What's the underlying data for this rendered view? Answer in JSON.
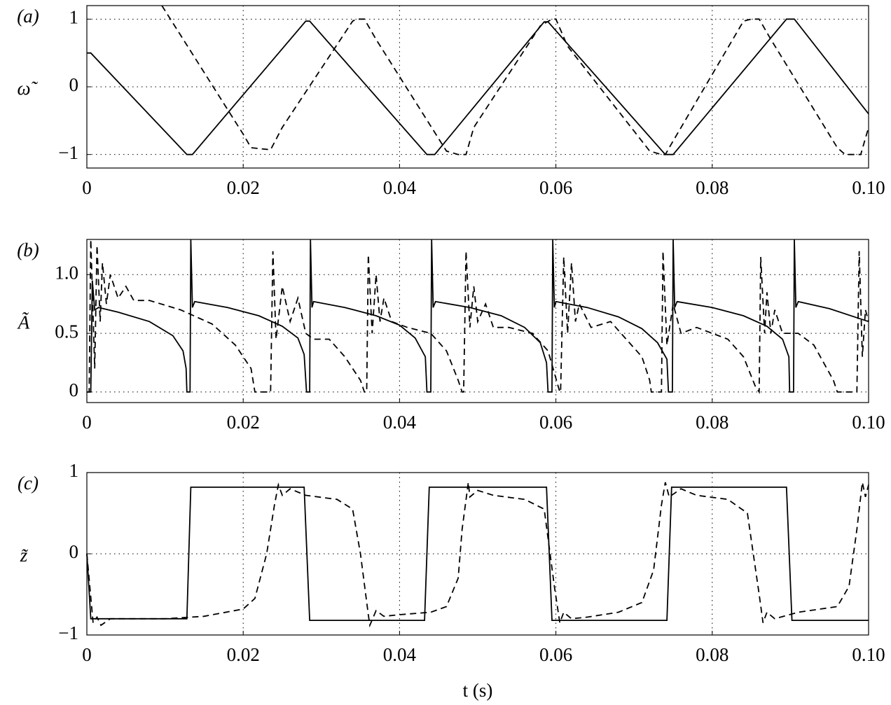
{
  "chart_data": [
    {
      "type": "line",
      "panel_label": "(a)",
      "ylabel": "ω̃",
      "xlim": [
        0,
        0.1
      ],
      "ylim": [
        -1.2,
        1.2
      ],
      "xticks": [
        0,
        {
          "value": 0.02,
          "label": "0.02"
        },
        {
          "value": 0.04,
          "label": "0.04"
        },
        {
          "value": 0.06,
          "label": "0.06"
        },
        {
          "value": 0.08,
          "label": "0.08"
        },
        {
          "value": 0.1,
          "label": "0.10"
        }
      ],
      "yticks": [
        {
          "value": -1,
          "label": "−1"
        },
        0,
        1
      ],
      "grid": true,
      "series": [
        {
          "color": "#000000",
          "dash": "solid",
          "x": [
            0,
            0.0005,
            0.0128,
            0.0135,
            0.028,
            0.0285,
            0.0435,
            0.0445,
            0.0585,
            0.059,
            0.074,
            0.075,
            0.0895,
            0.0905,
            0.1
          ],
          "values": [
            0.5,
            0.5,
            -1,
            -1,
            0.97,
            0.97,
            -1,
            -1,
            0.96,
            0.96,
            -1,
            -1,
            1,
            1,
            -0.4
          ]
        },
        {
          "color": "#000000",
          "dash": "dashed",
          "x": [
            0.0096,
            0.02,
            0.021,
            0.0235,
            0.025,
            0.034,
            0.0345,
            0.0355,
            0.037,
            0.046,
            0.0475,
            0.0485,
            0.0495,
            0.058,
            0.0595,
            0.06,
            0.0615,
            0.072,
            0.0735,
            0.074,
            0.075,
            0.084,
            0.085,
            0.086,
            0.0875,
            0.096,
            0.097,
            0.099,
            0.1
          ],
          "values": [
            1.2,
            -0.7,
            -0.9,
            -0.93,
            -0.6,
            0.97,
            1,
            1,
            0.7,
            -0.95,
            -1,
            -1,
            -0.6,
            0.9,
            1,
            1,
            0.6,
            -0.95,
            -1,
            -1,
            -0.8,
            0.97,
            1,
            1,
            0.7,
            -0.9,
            -1,
            -1,
            -0.6
          ]
        }
      ]
    },
    {
      "type": "line",
      "panel_label": "(b)",
      "ylabel": "Ã",
      "xlim": [
        0,
        0.1
      ],
      "ylim": [
        -0.09,
        1.3
      ],
      "xticks": [
        0,
        {
          "value": 0.02,
          "label": "0.02"
        },
        {
          "value": 0.04,
          "label": "0.04"
        },
        {
          "value": 0.06,
          "label": "0.06"
        },
        {
          "value": 0.08,
          "label": "0.08"
        },
        {
          "value": 0.1,
          "label": "0.10"
        }
      ],
      "yticks": [
        0,
        0.5,
        {
          "value": 1,
          "label": "1.0"
        }
      ],
      "grid": true,
      "series": [
        {
          "color": "#000000",
          "dash": "solid",
          "x": [
            0,
            0.0005,
            0.0007,
            0.001,
            0.0015,
            0.004,
            0.008,
            0.011,
            0.0123,
            0.0127,
            0.0128,
            0.0132,
            0.0133,
            0.0135,
            0.0138,
            0.018,
            0.022,
            0.025,
            0.027,
            0.0278,
            0.0281,
            0.0285,
            0.0286,
            0.0288,
            0.029,
            0.033,
            0.037,
            0.04,
            0.042,
            0.0433,
            0.0435,
            0.044,
            0.0441,
            0.0443,
            0.0446,
            0.049,
            0.053,
            0.056,
            0.058,
            0.0588,
            0.059,
            0.0595,
            0.0596,
            0.0598,
            0.06,
            0.064,
            0.068,
            0.071,
            0.073,
            0.0742,
            0.0744,
            0.0749,
            0.075,
            0.0752,
            0.0755,
            0.08,
            0.084,
            0.087,
            0.089,
            0.0898,
            0.0899,
            0.0904,
            0.0905,
            0.0907,
            0.091,
            0.095,
            0.1
          ],
          "values": [
            0,
            0,
            0.95,
            0.7,
            0.72,
            0.68,
            0.6,
            0.48,
            0.35,
            0.2,
            0,
            0,
            1.3,
            0.72,
            0.77,
            0.72,
            0.65,
            0.56,
            0.46,
            0.32,
            0,
            0,
            1.3,
            0.72,
            0.77,
            0.72,
            0.65,
            0.57,
            0.46,
            0.3,
            0,
            0,
            1.3,
            0.72,
            0.77,
            0.72,
            0.65,
            0.55,
            0.42,
            0.25,
            0,
            0,
            1.3,
            0.72,
            0.77,
            0.72,
            0.64,
            0.54,
            0.42,
            0.28,
            0,
            0,
            1.3,
            0.72,
            0.77,
            0.72,
            0.65,
            0.56,
            0.45,
            0.3,
            0,
            0,
            1.3,
            0.72,
            0.77,
            0.71,
            0.6
          ]
        },
        {
          "color": "#000000",
          "dash": "dashed",
          "x": [
            0,
            0.0003,
            0.0005,
            0.001,
            0.0013,
            0.0017,
            0.002,
            0.0025,
            0.003,
            0.004,
            0.005,
            0.006,
            0.008,
            0.012,
            0.016,
            0.019,
            0.021,
            0.0215,
            0.0235,
            0.0238,
            0.0242,
            0.025,
            0.026,
            0.027,
            0.028,
            0.029,
            0.031,
            0.033,
            0.035,
            0.0355,
            0.0358,
            0.036,
            0.0365,
            0.037,
            0.0375,
            0.038,
            0.039,
            0.041,
            0.044,
            0.046,
            0.0475,
            0.048,
            0.0482,
            0.0485,
            0.049,
            0.0495,
            0.05,
            0.051,
            0.052,
            0.054,
            0.057,
            0.059,
            0.0605,
            0.0606,
            0.061,
            0.0615,
            0.062,
            0.0625,
            0.063,
            0.0645,
            0.067,
            0.069,
            0.071,
            0.072,
            0.0722,
            0.0735,
            0.0737,
            0.0742,
            0.075,
            0.076,
            0.078,
            0.08,
            0.082,
            0.084,
            0.0855,
            0.086,
            0.0862,
            0.0867,
            0.087,
            0.0875,
            0.088,
            0.089,
            0.091,
            0.093,
            0.0955,
            0.096,
            0.0985,
            0.0988,
            0.0992,
            0.0996,
            0.1
          ],
          "values": [
            0,
            0,
            1.3,
            0.2,
            1.25,
            0.6,
            1.1,
            0.75,
            1.0,
            0.8,
            0.9,
            0.78,
            0.78,
            0.7,
            0.58,
            0.4,
            0.2,
            0,
            0,
            1.2,
            0.45,
            0.9,
            0.6,
            0.8,
            0.5,
            0.45,
            0.45,
            0.3,
            0.1,
            0,
            0,
            1.17,
            0.5,
            1.0,
            0.6,
            0.8,
            0.6,
            0.55,
            0.5,
            0.35,
            0.1,
            0,
            0,
            1.2,
            0.55,
            0.9,
            0.6,
            0.75,
            0.55,
            0.55,
            0.5,
            0.35,
            0,
            0,
            1.15,
            0.5,
            1.1,
            0.6,
            0.75,
            0.55,
            0.6,
            0.45,
            0.3,
            0.1,
            0,
            0,
            1.2,
            0.4,
            0.75,
            0.5,
            0.55,
            0.5,
            0.45,
            0.3,
            0.05,
            0,
            1.15,
            0.5,
            0.85,
            0.5,
            0.7,
            0.5,
            0.5,
            0.4,
            0.1,
            0,
            0,
            1.2,
            0.3,
            0.7,
            0.6
          ]
        }
      ]
    },
    {
      "type": "line",
      "panel_label": "(c)",
      "ylabel": "z̃",
      "xlabel": "t (s)",
      "xlim": [
        0,
        0.1
      ],
      "ylim": [
        -1,
        1
      ],
      "xticks": [
        0,
        {
          "value": 0.02,
          "label": "0.02"
        },
        {
          "value": 0.04,
          "label": "0.04"
        },
        {
          "value": 0.06,
          "label": "0.06"
        },
        {
          "value": 0.08,
          "label": "0.08"
        },
        {
          "value": 0.1,
          "label": "0.10"
        }
      ],
      "yticks": [
        {
          "value": -1,
          "label": "−1"
        },
        0,
        1
      ],
      "grid": true,
      "series": [
        {
          "color": "#000000",
          "dash": "solid",
          "x": [
            0,
            0.0005,
            0.0128,
            0.0133,
            0.0278,
            0.0285,
            0.0432,
            0.0438,
            0.0588,
            0.0595,
            0.0742,
            0.0748,
            0.0895,
            0.0902,
            0.1
          ],
          "values": [
            0,
            -0.8,
            -0.8,
            0.82,
            0.82,
            -0.82,
            -0.82,
            0.82,
            0.82,
            -0.82,
            -0.82,
            0.82,
            0.82,
            -0.82,
            -0.82
          ]
        },
        {
          "color": "#000000",
          "dash": "dashed",
          "x": [
            0,
            0.0008,
            0.0013,
            0.0018,
            0.003,
            0.01,
            0.015,
            0.02,
            0.0215,
            0.023,
            0.024,
            0.0245,
            0.025,
            0.026,
            0.028,
            0.032,
            0.034,
            0.035,
            0.036,
            0.0362,
            0.037,
            0.038,
            0.04,
            0.044,
            0.046,
            0.0475,
            0.048,
            0.0488,
            0.049,
            0.05,
            0.052,
            0.056,
            0.0585,
            0.0598,
            0.0605,
            0.061,
            0.062,
            0.064,
            0.068,
            0.071,
            0.0725,
            0.0735,
            0.074,
            0.0745,
            0.076,
            0.078,
            0.082,
            0.0845,
            0.086,
            0.0865,
            0.087,
            0.088,
            0.091,
            0.096,
            0.0975,
            0.0985,
            0.0992,
            0.0996,
            0.1
          ],
          "values": [
            0,
            -0.85,
            -0.78,
            -0.88,
            -0.8,
            -0.8,
            -0.77,
            -0.68,
            -0.55,
            0,
            0.6,
            0.85,
            0.72,
            0.8,
            0.72,
            0.67,
            0.55,
            0,
            -0.75,
            -0.88,
            -0.7,
            -0.77,
            -0.75,
            -0.72,
            -0.65,
            -0.3,
            0.3,
            0.88,
            0.7,
            0.78,
            0.72,
            0.67,
            0.55,
            -0.4,
            -0.85,
            -0.72,
            -0.8,
            -0.78,
            -0.72,
            -0.6,
            -0.2,
            0.6,
            0.88,
            0.7,
            0.8,
            0.72,
            0.67,
            0.5,
            -0.5,
            -0.85,
            -0.72,
            -0.8,
            -0.72,
            -0.65,
            -0.4,
            0.3,
            0.88,
            0.7,
            0.85
          ]
        }
      ]
    }
  ]
}
